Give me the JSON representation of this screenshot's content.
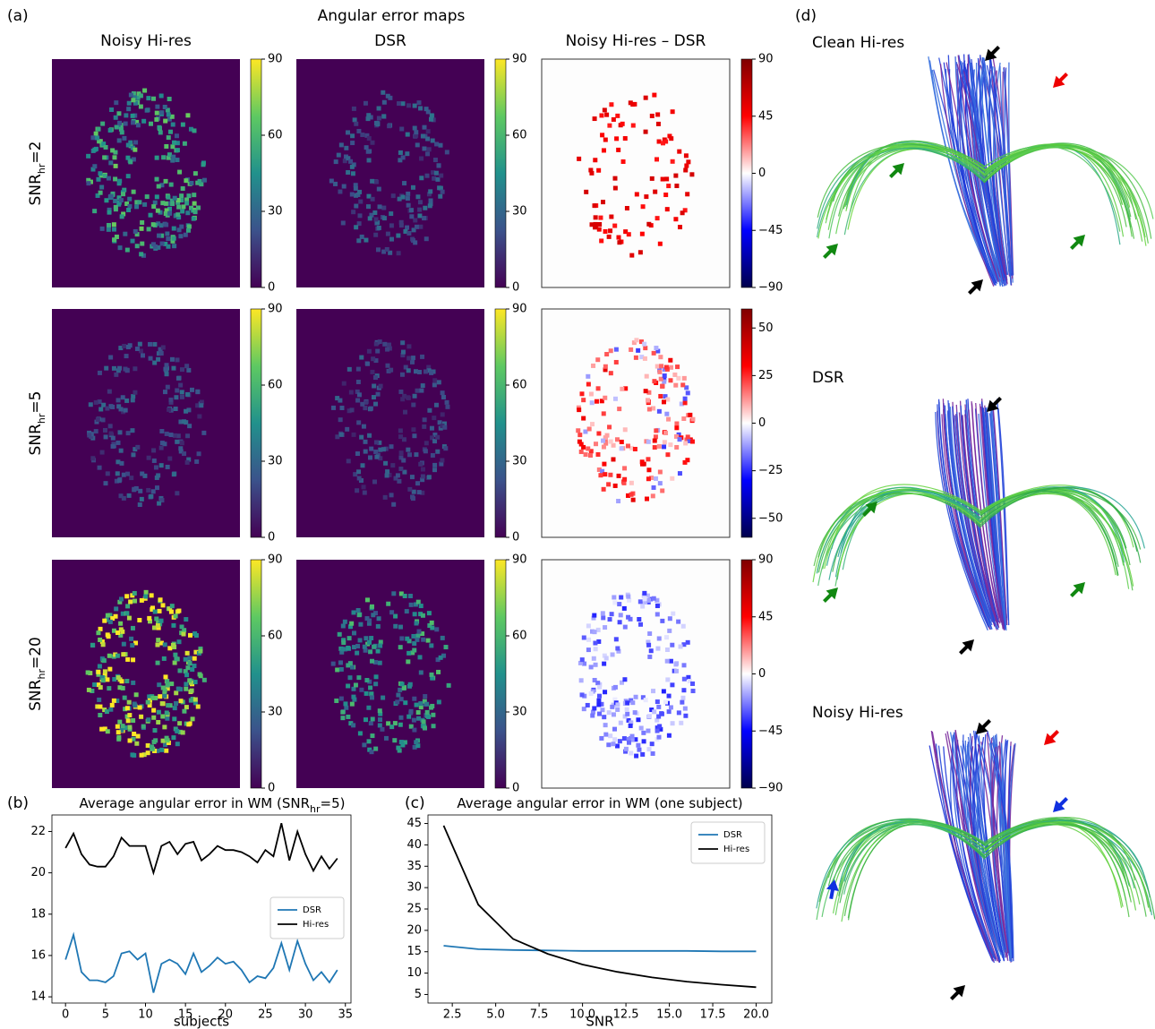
{
  "labels": {
    "a": "(a)",
    "b": "(b)",
    "c": "(c)",
    "d": "(d)"
  },
  "panel_a": {
    "title": "Angular error maps",
    "columns": [
      "Noisy Hi-res",
      "DSR",
      "Noisy Hi-res – DSR"
    ],
    "rows": [
      {
        "prefix": "SNR",
        "sub": "hr",
        "suffix": "=2"
      },
      {
        "prefix": "SNR",
        "sub": "hr",
        "suffix": "=5"
      },
      {
        "prefix": "SNR",
        "sub": "hr",
        "suffix": "=20"
      }
    ],
    "colorbars": [
      [
        {
          "cmap": "viridis",
          "clim": [
            0,
            90
          ],
          "ticks": [
            0,
            30,
            60,
            90
          ]
        },
        {
          "cmap": "viridis",
          "clim": [
            0,
            90
          ],
          "ticks": [
            0,
            30,
            60,
            90
          ]
        },
        {
          "cmap": "seismic",
          "clim": [
            -90,
            90
          ],
          "ticks": [
            90,
            45,
            0,
            {
              "value": -45,
              "label": "−45"
            },
            {
              "value": -90,
              "label": "−90"
            }
          ]
        }
      ],
      [
        {
          "cmap": "viridis",
          "clim": [
            0,
            90
          ],
          "ticks": [
            0,
            30,
            60,
            90
          ]
        },
        {
          "cmap": "viridis",
          "clim": [
            0,
            90
          ],
          "ticks": [
            0,
            30,
            60,
            90
          ]
        },
        {
          "cmap": "seismic",
          "clim": [
            -60,
            60
          ],
          "ticks": [
            50,
            25,
            0,
            {
              "value": -25,
              "label": "−25"
            },
            {
              "value": -50,
              "label": "−50"
            }
          ]
        }
      ],
      [
        {
          "cmap": "viridis",
          "clim": [
            0,
            90
          ],
          "ticks": [
            0,
            30,
            60,
            90
          ]
        },
        {
          "cmap": "viridis",
          "clim": [
            0,
            90
          ],
          "ticks": [
            0,
            30,
            60,
            90
          ]
        },
        {
          "cmap": "seismic",
          "clim": [
            -90,
            90
          ],
          "ticks": [
            90,
            45,
            0,
            {
              "value": -45,
              "label": "−45"
            },
            {
              "value": -90,
              "label": "−90"
            }
          ]
        }
      ]
    ]
  },
  "panel_d": {
    "titles": [
      "Clean Hi-res",
      "DSR",
      "Noisy Hi-res"
    ]
  },
  "chart_data": [
    {
      "type": "line",
      "title": {
        "text": "Average angular error in WM (SNR",
        "sub": "hr",
        "suffix": "=5)"
      },
      "xlabel": "subjects",
      "x": [
        0,
        1,
        2,
        3,
        4,
        5,
        6,
        7,
        8,
        9,
        10,
        11,
        12,
        13,
        14,
        15,
        16,
        17,
        18,
        19,
        20,
        21,
        22,
        23,
        24,
        25,
        26,
        27,
        28,
        29,
        30,
        31,
        32,
        33,
        34
      ],
      "xlim": [
        -1.7,
        35.7
      ],
      "xticks": [
        0,
        5,
        10,
        15,
        20,
        25,
        30,
        35
      ],
      "ylim": [
        13.7,
        22.8
      ],
      "yticks": [
        14,
        16,
        18,
        20,
        22
      ],
      "legend": "center right",
      "series": [
        {
          "name": "DSR",
          "color": "#1f77b4",
          "values": [
            15.8,
            17.0,
            15.2,
            14.8,
            14.8,
            14.7,
            15.0,
            16.1,
            16.2,
            15.8,
            16.1,
            14.2,
            15.6,
            15.8,
            15.6,
            15.1,
            16.1,
            15.2,
            15.5,
            15.9,
            15.6,
            15.7,
            15.3,
            14.7,
            15.0,
            14.9,
            15.4,
            16.6,
            15.3,
            16.7,
            15.6,
            14.8,
            15.2,
            14.7,
            15.3
          ]
        },
        {
          "name": "Hi-res",
          "color": "#000000",
          "values": [
            21.2,
            21.9,
            20.9,
            20.4,
            20.3,
            20.3,
            20.8,
            21.7,
            21.3,
            21.3,
            21.3,
            20.0,
            21.3,
            21.5,
            20.9,
            21.4,
            21.5,
            20.6,
            20.9,
            21.3,
            21.1,
            21.1,
            21.0,
            20.8,
            20.5,
            21.1,
            20.8,
            22.4,
            20.6,
            22.0,
            20.9,
            20.1,
            20.8,
            20.2,
            20.7
          ]
        }
      ]
    },
    {
      "type": "line",
      "title": {
        "text": "Average angular error in WM (one subject)"
      },
      "xlabel": "SNR",
      "x": [
        2,
        4,
        6,
        8,
        10,
        12,
        14,
        16,
        18,
        20
      ],
      "xlim": [
        1.1,
        20.9
      ],
      "xticks": [
        {
          "value": 2.5,
          "label": "2.5"
        },
        {
          "value": 5,
          "label": "5.0"
        },
        {
          "value": 7.5,
          "label": "7.5"
        },
        {
          "value": 10,
          "label": "10.0"
        },
        {
          "value": 12.5,
          "label": "12.5"
        },
        {
          "value": 15,
          "label": "15.0"
        },
        {
          "value": 17.5,
          "label": "17.5"
        },
        {
          "value": 20,
          "label": "20.0"
        }
      ],
      "ylim": [
        3.0,
        47.0
      ],
      "yticks": [
        5,
        10,
        15,
        20,
        25,
        30,
        35,
        40,
        45
      ],
      "legend": "upper right",
      "series": [
        {
          "name": "DSR",
          "color": "#1f77b4",
          "values": [
            16.4,
            15.6,
            15.4,
            15.3,
            15.2,
            15.2,
            15.2,
            15.2,
            15.1,
            15.1
          ]
        },
        {
          "name": "Hi-res",
          "color": "#000000",
          "values": [
            44.5,
            26.0,
            18.0,
            14.5,
            12.0,
            10.3,
            9.0,
            8.0,
            7.3,
            6.7
          ]
        }
      ]
    }
  ]
}
